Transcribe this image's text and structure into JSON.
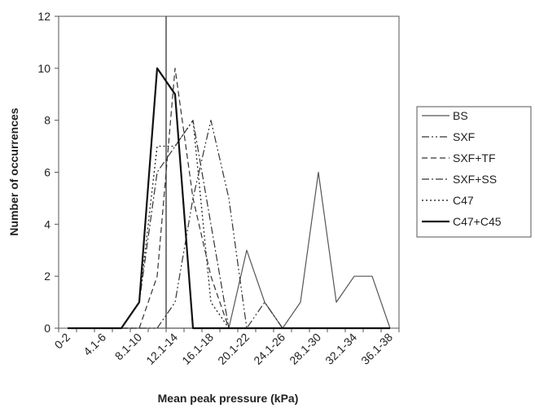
{
  "chart_data": {
    "type": "line",
    "title": "",
    "xlabel": "Mean peak pressure (kPa)",
    "ylabel": "Number of occurrences",
    "ylim": [
      0,
      12
    ],
    "yticks": [
      0,
      2,
      4,
      6,
      8,
      10,
      12
    ],
    "x_tick_labels": [
      "0-2",
      "4.1-6",
      "8.1-10",
      "12.1-14",
      "16.1-18",
      "20.1-22",
      "24.1-26",
      "28.1-30",
      "32.1-34",
      "36.1-38"
    ],
    "x_category_count": 19,
    "reference_line_x": 5.5,
    "grid": false,
    "legend_position": "right",
    "series": [
      {
        "name": "BS",
        "style": "solid-thin",
        "color": "#555555",
        "values": [
          0,
          0,
          0,
          0,
          0,
          0,
          0,
          0,
          0,
          0,
          3,
          1,
          0,
          1,
          6,
          1,
          2,
          2,
          0
        ]
      },
      {
        "name": "SXF",
        "style": "dash-dot-dot",
        "color": "#333333",
        "values": [
          0,
          0,
          0,
          0,
          0,
          0,
          1,
          5,
          8,
          5,
          0,
          1,
          0,
          0,
          0,
          0,
          0,
          0,
          0
        ]
      },
      {
        "name": "SXF+TF",
        "style": "dashed",
        "color": "#333333",
        "values": [
          0,
          0,
          0,
          0,
          0,
          2,
          10,
          5,
          2,
          0,
          0,
          0,
          0,
          0,
          0,
          0,
          0,
          0,
          0
        ]
      },
      {
        "name": "SXF+SS",
        "style": "dash-dot",
        "color": "#333333",
        "values": [
          0,
          0,
          0,
          0,
          1,
          6,
          7,
          8,
          4,
          0,
          0,
          0,
          0,
          0,
          0,
          0,
          0,
          0,
          0
        ]
      },
      {
        "name": "C47",
        "style": "dotted",
        "color": "#333333",
        "values": [
          0,
          0,
          0,
          0,
          1,
          7,
          7,
          8,
          1,
          0,
          0,
          0,
          0,
          0,
          0,
          0,
          0,
          0,
          0
        ]
      },
      {
        "name": "C47+C45",
        "style": "solid-thick",
        "color": "#111111",
        "values": [
          0,
          0,
          0,
          0,
          1,
          10,
          9,
          0,
          0,
          0,
          0,
          0,
          0,
          0,
          0,
          0,
          0,
          0,
          0
        ]
      }
    ]
  }
}
